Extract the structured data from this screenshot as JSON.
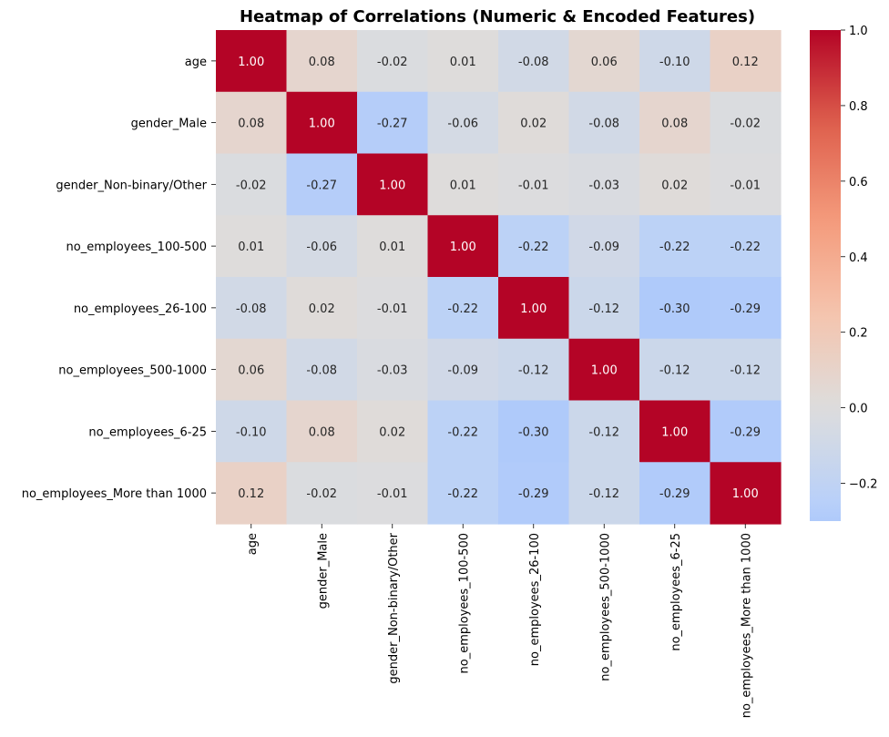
{
  "chart_data": {
    "type": "heatmap",
    "title": "Heatmap of Correlations (Numeric & Encoded Features)",
    "xlabel": "",
    "ylabel": "",
    "labels": [
      "age",
      "gender_Male",
      "gender_Non-binary/Other",
      "no_employees_100-500",
      "no_employees_26-100",
      "no_employees_500-1000",
      "no_employees_6-25",
      "no_employees_More than 1000"
    ],
    "matrix": [
      [
        1.0,
        0.08,
        -0.02,
        0.01,
        -0.08,
        0.06,
        -0.1,
        0.12
      ],
      [
        0.08,
        1.0,
        -0.27,
        -0.06,
        0.02,
        -0.08,
        0.08,
        -0.02
      ],
      [
        -0.02,
        -0.27,
        1.0,
        0.01,
        -0.01,
        -0.03,
        0.02,
        -0.01
      ],
      [
        0.01,
        -0.06,
        0.01,
        1.0,
        -0.22,
        -0.09,
        -0.22,
        -0.22
      ],
      [
        -0.08,
        0.02,
        -0.01,
        -0.22,
        1.0,
        -0.12,
        -0.3,
        -0.29
      ],
      [
        0.06,
        -0.08,
        -0.03,
        -0.09,
        -0.12,
        1.0,
        -0.12,
        -0.12
      ],
      [
        -0.1,
        0.08,
        0.02,
        -0.22,
        -0.3,
        -0.12,
        1.0,
        -0.29
      ],
      [
        0.12,
        -0.02,
        -0.01,
        -0.22,
        -0.29,
        -0.12,
        -0.29,
        1.0
      ]
    ],
    "colormap": "coolwarm",
    "center": 0,
    "vmin": -0.3,
    "vmax": 1.0,
    "colorbar_ticks": [
      1.0,
      0.8,
      0.6,
      0.4,
      0.2,
      0.0,
      -0.2
    ],
    "colorbar_tick_labels": [
      "1.0",
      "0.8",
      "0.6",
      "0.4",
      "0.2",
      "0.0",
      "−0.2"
    ],
    "annot_format": "0.00",
    "grid": false,
    "legend": "colorbar-right"
  }
}
